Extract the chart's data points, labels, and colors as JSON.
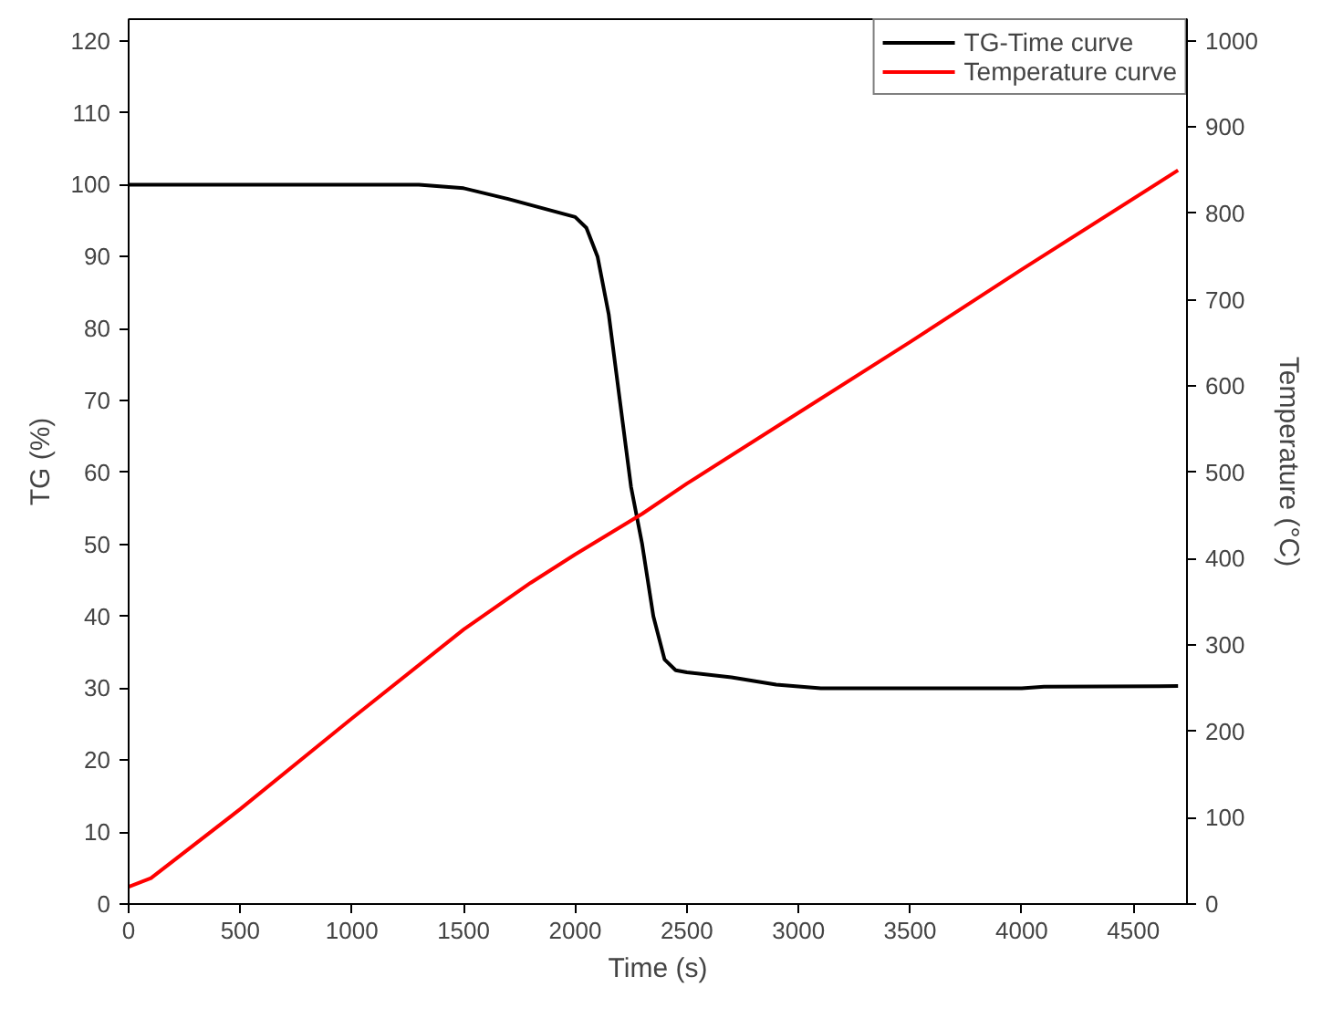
{
  "chart_data": {
    "type": "line",
    "xlabel": "Time (s)",
    "ylabel": "TG (%)",
    "y2label": "Temperature (°C)",
    "xlim": [
      0,
      4740
    ],
    "xticks": [
      0,
      500,
      1000,
      1500,
      2000,
      2500,
      3000,
      3500,
      4000,
      4500
    ],
    "ylim": [
      0,
      123
    ],
    "yticks": [
      0,
      10,
      20,
      30,
      40,
      50,
      60,
      70,
      80,
      90,
      100,
      110,
      120
    ],
    "y2lim": [
      0,
      1025
    ],
    "y2ticks": [
      0,
      100,
      200,
      300,
      400,
      500,
      600,
      700,
      800,
      900,
      1000
    ],
    "grid": false,
    "legend": "top right",
    "marker": "none",
    "line_style": "solid",
    "series": [
      {
        "name": "TG-Time curve",
        "color": "#000000",
        "x": [
          0,
          1300,
          1500,
          1700,
          2000,
          2050,
          2100,
          2150,
          2200,
          2250,
          2300,
          2350,
          2400,
          2450,
          2500,
          2700,
          2900,
          3100,
          4000,
          4100,
          4700
        ],
        "values": [
          100,
          100,
          99.5,
          98,
          95.5,
          94,
          90,
          82,
          70,
          58,
          50,
          40,
          34,
          32.5,
          32.2,
          31.5,
          30.5,
          30,
          30,
          30.2,
          30.3
        ]
      },
      {
        "name": "Temperature curve",
        "color": "#ff0000",
        "axis": "y2",
        "x": [
          0,
          100,
          500,
          1000,
          1500,
          1800,
          2000,
          2300,
          2500,
          3000,
          3500,
          4000,
          4700
        ],
        "values": [
          20,
          30,
          110,
          215,
          318,
          372,
          405,
          452,
          487,
          569,
          651,
          735,
          850
        ]
      }
    ]
  }
}
